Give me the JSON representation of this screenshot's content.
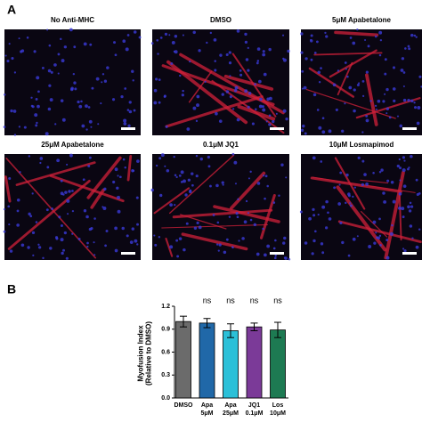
{
  "panel_a": {
    "label": "A",
    "images": [
      "No Anti-MHC",
      "DMSO",
      "5μM Apabetalone",
      "25μM Apabetalone",
      "0.1μM JQ1",
      "10μM Losmapimod"
    ]
  },
  "panel_b": {
    "label": "B"
  },
  "chart_data": {
    "type": "bar",
    "ylabel": "Myofusion Index\n(Relative to DMSO)",
    "categories": [
      "DMSO",
      "Apa\n5μM",
      "Apa\n25μM",
      "JQ1\n0.1μM",
      "Los\n10μM"
    ],
    "values": [
      1.0,
      0.98,
      0.88,
      0.93,
      0.89
    ],
    "errors": [
      0.07,
      0.06,
      0.09,
      0.05,
      0.1
    ],
    "colors": [
      "#6b6b6b",
      "#2068a8",
      "#2bc0d8",
      "#7b3a98",
      "#1d7a52"
    ],
    "annotations": [
      null,
      "ns",
      "ns",
      "ns",
      "ns"
    ],
    "ylim": [
      0,
      1.2
    ],
    "yticks": [
      {
        "value": 0,
        "label": "0.0"
      },
      0.3,
      0.6,
      0.9,
      1.2
    ]
  }
}
